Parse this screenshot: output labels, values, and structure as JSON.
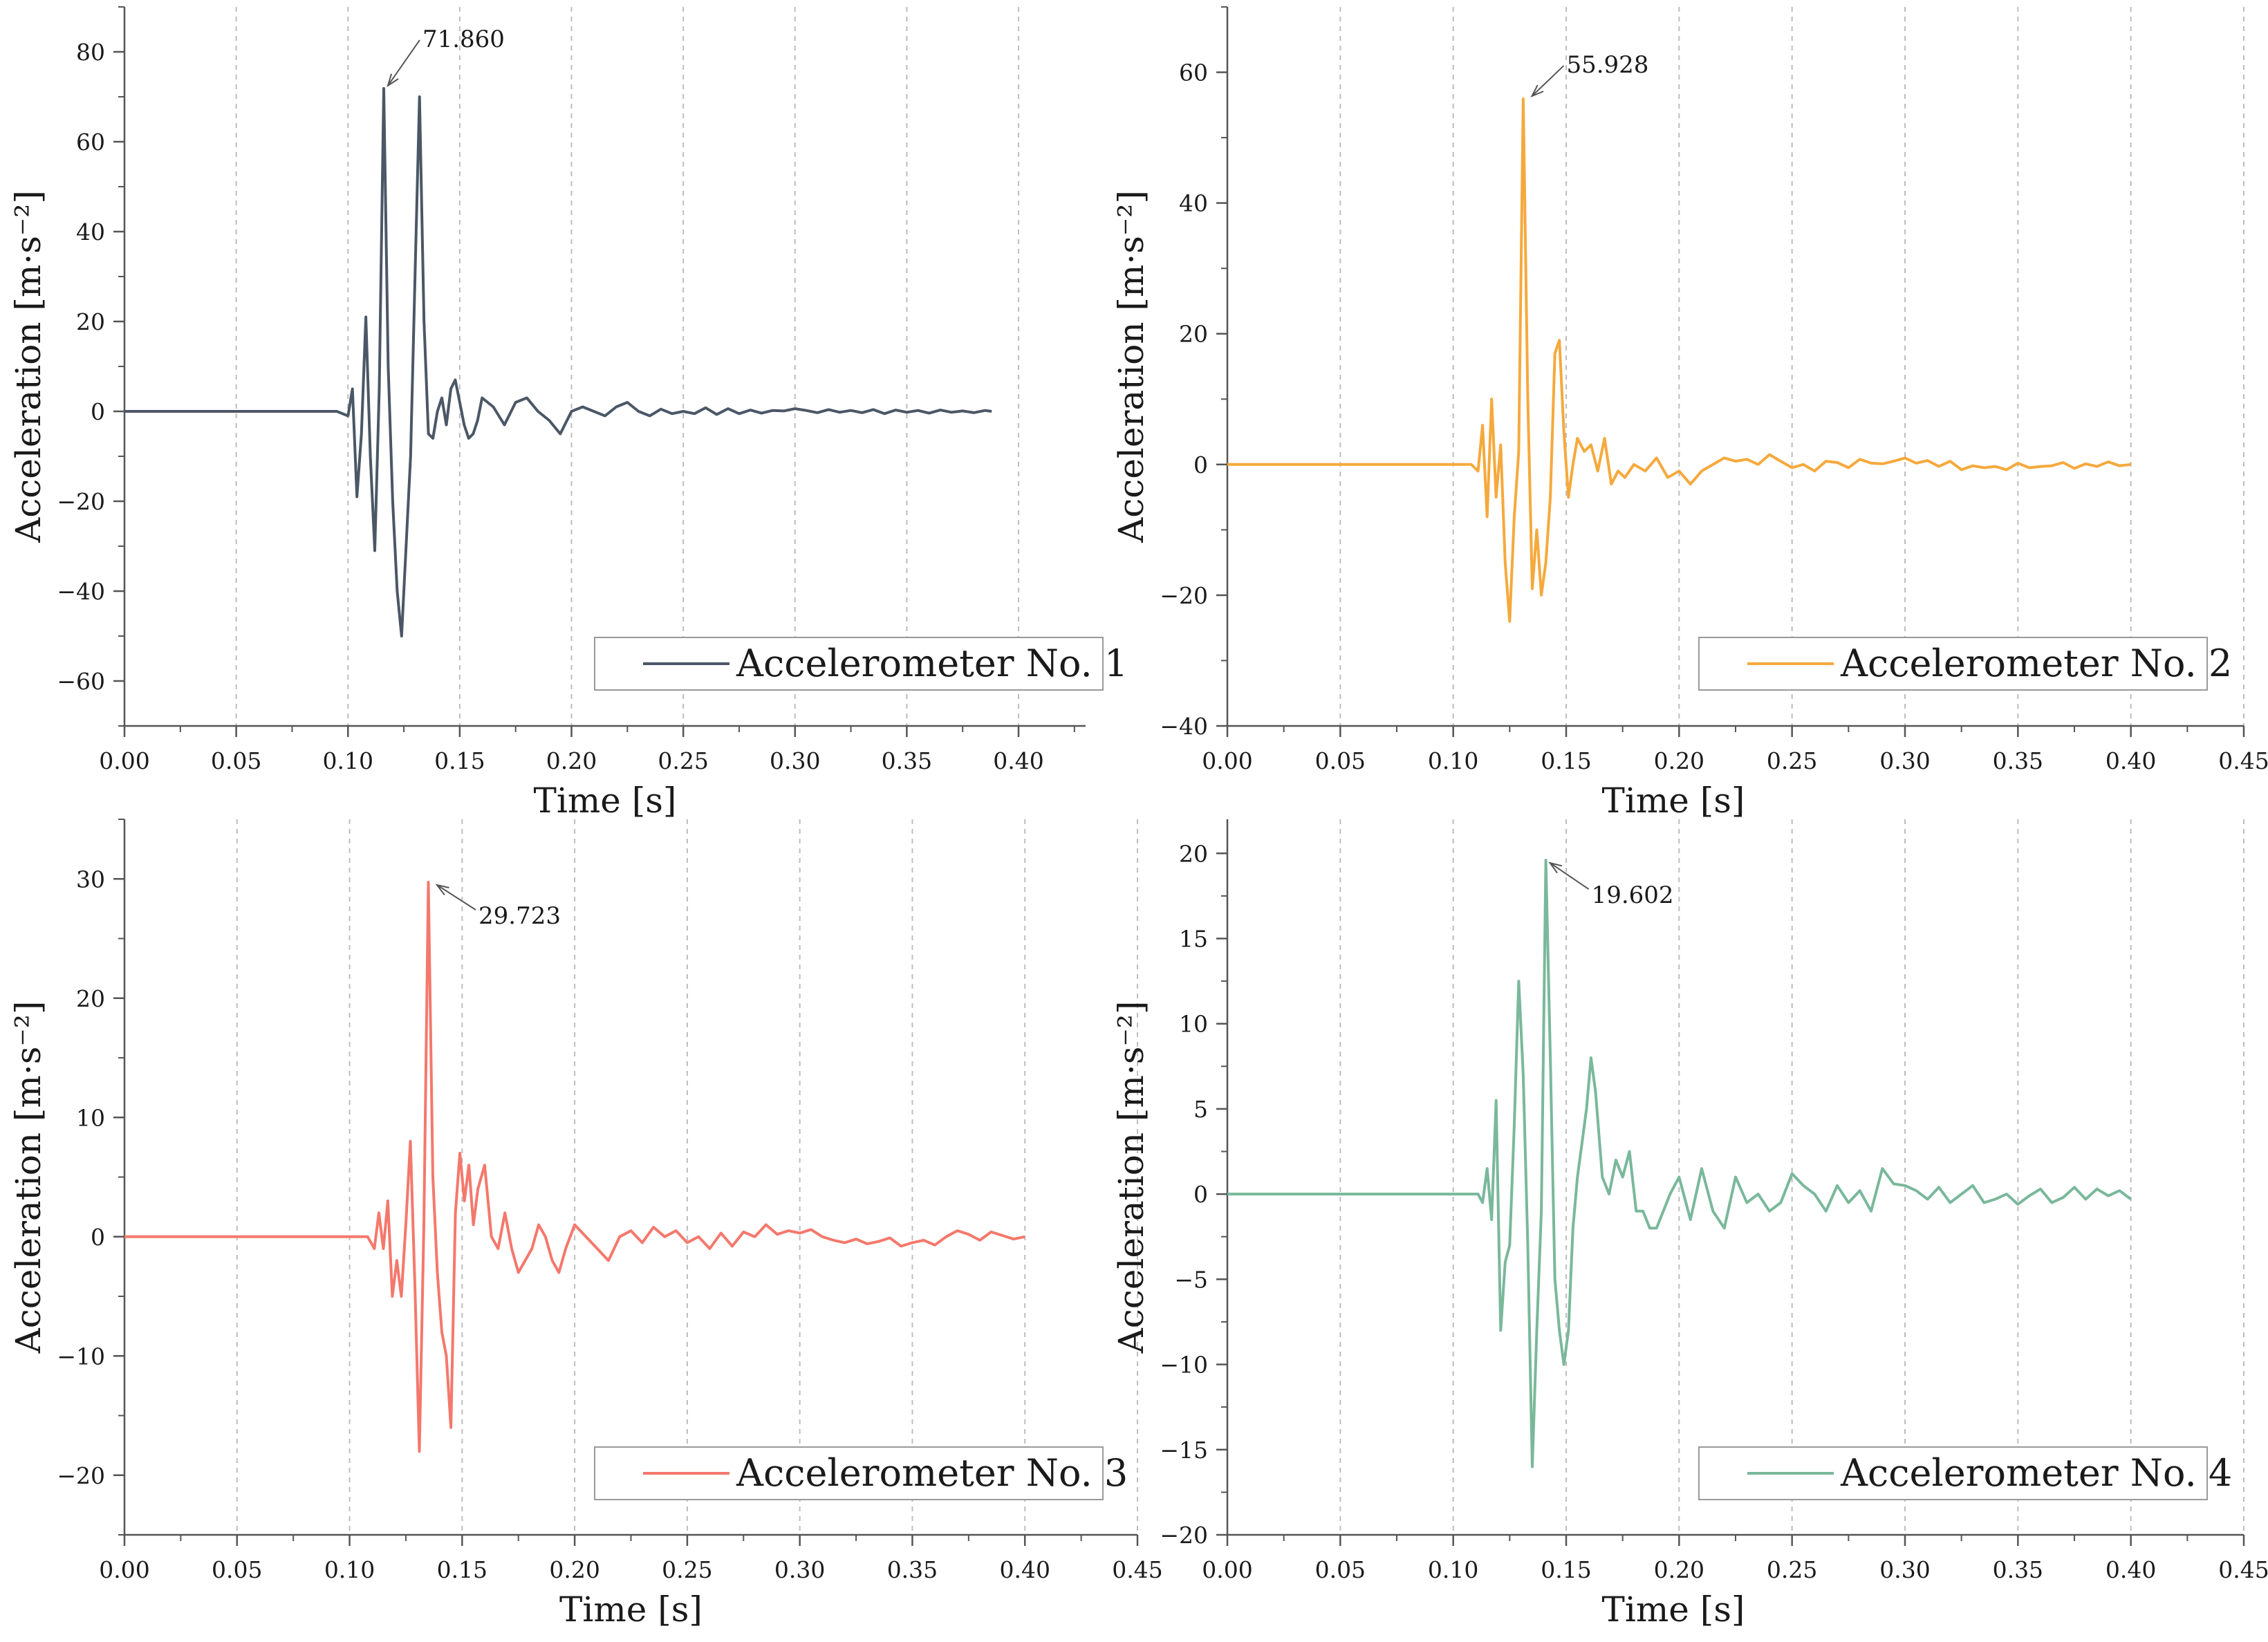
{
  "chart_data": [
    {
      "type": "line",
      "series_name": "Accelerometer No. 1",
      "color": "#4b5766",
      "xlabel": "Time [s]",
      "ylabel": "Acceleration [m·s⁻²]",
      "xlim": [
        0,
        0.43
      ],
      "ylim": [
        -70,
        90
      ],
      "xticks": [
        "0.00",
        "0.05",
        "0.10",
        "0.15",
        "0.20",
        "0.25",
        "0.30",
        "0.35",
        "0.40"
      ],
      "yticks": [
        "-60",
        "-40",
        "-20",
        "0",
        "20",
        "40",
        "60",
        "80"
      ],
      "yticks_values": [
        -60,
        -40,
        -20,
        0,
        20,
        40,
        60,
        80
      ],
      "legend": "Accelerometer No. 1",
      "legend_position": "bottom-right",
      "annotation": {
        "label": "71.860",
        "x": 0.116,
        "y": 71.86
      },
      "x": [
        0,
        0.095,
        0.1,
        0.102,
        0.104,
        0.106,
        0.108,
        0.11,
        0.112,
        0.114,
        0.116,
        0.118,
        0.12,
        0.122,
        0.124,
        0.126,
        0.128,
        0.13,
        0.132,
        0.134,
        0.136,
        0.138,
        0.14,
        0.142,
        0.144,
        0.146,
        0.148,
        0.15,
        0.152,
        0.154,
        0.156,
        0.158,
        0.16,
        0.165,
        0.17,
        0.175,
        0.18,
        0.185,
        0.19,
        0.195,
        0.2,
        0.205,
        0.21,
        0.215,
        0.22,
        0.225,
        0.23,
        0.235,
        0.24,
        0.245,
        0.25,
        0.255,
        0.26,
        0.265,
        0.27,
        0.275,
        0.28,
        0.285,
        0.29,
        0.295,
        0.3,
        0.305,
        0.31,
        0.315,
        0.32,
        0.325,
        0.33,
        0.335,
        0.34,
        0.345,
        0.35,
        0.355,
        0.36,
        0.365,
        0.37,
        0.375,
        0.38,
        0.385,
        0.388
      ],
      "y": [
        0,
        0,
        -1,
        5,
        -19,
        -5,
        21,
        -10,
        -31,
        5,
        71.86,
        10,
        -20,
        -40,
        -50,
        -30,
        -10,
        30,
        70,
        20,
        -5,
        -6,
        0,
        3,
        -3,
        5,
        7,
        2,
        -3,
        -6,
        -5,
        -2,
        3,
        1,
        -3,
        2,
        3,
        0,
        -2,
        -5,
        0,
        1,
        0,
        -1,
        1,
        2,
        0,
        -1,
        0.5,
        -0.5,
        0,
        -0.5,
        0.8,
        -0.7,
        0.6,
        -0.5,
        0.3,
        -0.4,
        0.2,
        0.1,
        0.6,
        0.2,
        -0.3,
        0.4,
        -0.2,
        0.2,
        -0.3,
        0.4,
        -0.5,
        0.3,
        -0.2,
        0.2,
        -0.4,
        0.3,
        -0.2,
        0.1,
        -0.3,
        0.2,
        0
      ]
    },
    {
      "type": "line",
      "series_name": "Accelerometer No. 2",
      "color": "#f5a93c",
      "xlabel": "Time [s]",
      "ylabel": "Acceleration [m·s⁻²]",
      "xlim": [
        0,
        0.45
      ],
      "ylim": [
        -40,
        70
      ],
      "xticks": [
        "0.00",
        "0.05",
        "0.10",
        "0.15",
        "0.20",
        "0.25",
        "0.30",
        "0.35",
        "0.40",
        "0.45"
      ],
      "yticks": [
        "-40",
        "-20",
        "0",
        "20",
        "40",
        "60"
      ],
      "yticks_values": [
        -40,
        -20,
        0,
        20,
        40,
        60
      ],
      "legend": "Accelerometer No. 2",
      "legend_position": "bottom-right",
      "annotation": {
        "label": "55.928",
        "x": 0.133,
        "y": 55.928
      },
      "x": [
        0,
        0.108,
        0.111,
        0.113,
        0.115,
        0.117,
        0.119,
        0.121,
        0.123,
        0.125,
        0.127,
        0.129,
        0.131,
        0.133,
        0.135,
        0.137,
        0.139,
        0.141,
        0.143,
        0.145,
        0.147,
        0.149,
        0.151,
        0.153,
        0.155,
        0.158,
        0.161,
        0.164,
        0.167,
        0.17,
        0.173,
        0.176,
        0.18,
        0.185,
        0.19,
        0.195,
        0.2,
        0.205,
        0.21,
        0.215,
        0.22,
        0.225,
        0.23,
        0.235,
        0.24,
        0.245,
        0.25,
        0.255,
        0.26,
        0.265,
        0.27,
        0.275,
        0.28,
        0.285,
        0.29,
        0.295,
        0.3,
        0.305,
        0.31,
        0.315,
        0.32,
        0.325,
        0.33,
        0.335,
        0.34,
        0.345,
        0.35,
        0.355,
        0.36,
        0.365,
        0.37,
        0.375,
        0.38,
        0.385,
        0.39,
        0.395,
        0.4
      ],
      "y": [
        0,
        0,
        -1,
        6,
        -8,
        10,
        -5,
        3,
        -15,
        -24,
        -8,
        2,
        55.928,
        10,
        -19,
        -10,
        -20,
        -15,
        -5,
        17,
        19,
        5,
        -5,
        0,
        4,
        2,
        3,
        -1,
        4,
        -3,
        -1,
        -2,
        0,
        -1,
        1,
        -2,
        -1,
        -3,
        -1,
        0,
        1,
        0.5,
        0.8,
        0,
        1.5,
        0.5,
        -0.5,
        0,
        -1,
        0.5,
        0.3,
        -0.5,
        0.8,
        0.2,
        0.1,
        0.5,
        1,
        0.2,
        0.6,
        -0.3,
        0.5,
        -0.8,
        -0.2,
        -0.5,
        -0.3,
        -0.8,
        0.2,
        -0.5,
        -0.3,
        -0.2,
        0.3,
        -0.6,
        0.1,
        -0.3,
        0.4,
        -0.2,
        0
      ]
    },
    {
      "type": "line",
      "series_name": "Accelerometer No. 3",
      "color": "#f4786c",
      "xlabel": "Time [s]",
      "ylabel": "Acceleration [m·s⁻²]",
      "xlim": [
        0,
        0.45
      ],
      "ylim": [
        -25,
        35
      ],
      "xticks": [
        "0.00",
        "0.05",
        "0.10",
        "0.15",
        "0.20",
        "0.25",
        "0.30",
        "0.35",
        "0.40",
        "0.45"
      ],
      "yticks": [
        "-20",
        "-10",
        "0",
        "10",
        "20",
        "30"
      ],
      "yticks_values": [
        -20,
        -10,
        0,
        10,
        20,
        30
      ],
      "legend": "Accelerometer No. 3",
      "legend_position": "bottom-right",
      "annotation": {
        "label": "29.723",
        "x": 0.137,
        "y": 29.723
      },
      "x": [
        0,
        0.108,
        0.111,
        0.113,
        0.115,
        0.117,
        0.119,
        0.121,
        0.123,
        0.125,
        0.127,
        0.129,
        0.131,
        0.133,
        0.135,
        0.137,
        0.139,
        0.141,
        0.143,
        0.145,
        0.147,
        0.149,
        0.151,
        0.153,
        0.155,
        0.157,
        0.16,
        0.163,
        0.166,
        0.169,
        0.172,
        0.175,
        0.178,
        0.181,
        0.184,
        0.187,
        0.19,
        0.193,
        0.196,
        0.2,
        0.205,
        0.21,
        0.215,
        0.22,
        0.225,
        0.23,
        0.235,
        0.24,
        0.245,
        0.25,
        0.255,
        0.26,
        0.265,
        0.27,
        0.275,
        0.28,
        0.285,
        0.29,
        0.295,
        0.3,
        0.305,
        0.31,
        0.315,
        0.32,
        0.325,
        0.33,
        0.335,
        0.34,
        0.345,
        0.35,
        0.355,
        0.36,
        0.365,
        0.37,
        0.375,
        0.38,
        0.385,
        0.39,
        0.395,
        0.4
      ],
      "y": [
        0,
        0,
        -1,
        2,
        -1,
        3,
        -5,
        -2,
        -5,
        1,
        8,
        -4,
        -18,
        1,
        29.723,
        5,
        -3,
        -8,
        -10,
        -16,
        2,
        7,
        3,
        6,
        1,
        4,
        6,
        0,
        -1,
        2,
        -1,
        -3,
        -2,
        -1,
        1,
        0,
        -2,
        -3,
        -1,
        1,
        0,
        -1,
        -2,
        0,
        0.5,
        -0.5,
        0.8,
        0,
        0.5,
        -0.5,
        0,
        -1,
        0.3,
        -0.8,
        0.4,
        0,
        1,
        0.2,
        0.5,
        0.3,
        0.6,
        0,
        -0.3,
        -0.5,
        -0.2,
        -0.6,
        -0.4,
        -0.1,
        -0.8,
        -0.5,
        -0.3,
        -0.7,
        0,
        0.5,
        0.2,
        -0.3,
        0.4,
        0.1,
        -0.2,
        0
      ]
    },
    {
      "type": "line",
      "series_name": "Accelerometer No. 4",
      "color": "#7ab89b",
      "xlabel": "Time [s]",
      "ylabel": "Acceleration [m·s⁻²]",
      "xlim": [
        0,
        0.45
      ],
      "ylim": [
        -20,
        22
      ],
      "xticks": [
        "0.00",
        "0.05",
        "0.10",
        "0.15",
        "0.20",
        "0.25",
        "0.30",
        "0.35",
        "0.40",
        "0.45"
      ],
      "yticks": [
        "-20",
        "-15",
        "-10",
        "-5",
        "0",
        "5",
        "10",
        "15",
        "20"
      ],
      "yticks_values": [
        -20,
        -15,
        -10,
        -5,
        0,
        5,
        10,
        15,
        20
      ],
      "legend": "Accelerometer No. 4",
      "legend_position": "bottom-right",
      "annotation": {
        "label": "19.602",
        "x": 0.141,
        "y": 19.602
      },
      "x": [
        0,
        0.108,
        0.111,
        0.113,
        0.115,
        0.117,
        0.119,
        0.121,
        0.123,
        0.125,
        0.127,
        0.129,
        0.131,
        0.133,
        0.135,
        0.137,
        0.139,
        0.141,
        0.143,
        0.145,
        0.147,
        0.149,
        0.151,
        0.153,
        0.155,
        0.157,
        0.159,
        0.161,
        0.163,
        0.166,
        0.169,
        0.172,
        0.175,
        0.178,
        0.181,
        0.184,
        0.187,
        0.19,
        0.193,
        0.196,
        0.2,
        0.205,
        0.21,
        0.215,
        0.22,
        0.225,
        0.23,
        0.235,
        0.24,
        0.245,
        0.25,
        0.255,
        0.26,
        0.265,
        0.27,
        0.275,
        0.28,
        0.285,
        0.29,
        0.295,
        0.3,
        0.305,
        0.31,
        0.315,
        0.32,
        0.325,
        0.33,
        0.335,
        0.34,
        0.345,
        0.35,
        0.355,
        0.36,
        0.365,
        0.37,
        0.375,
        0.38,
        0.385,
        0.39,
        0.395,
        0.4
      ],
      "y": [
        0,
        0,
        0,
        -0.5,
        1.5,
        -1.5,
        5.5,
        -8,
        -4,
        -3,
        4,
        12.5,
        7,
        -3,
        -16,
        -8,
        -1,
        19.602,
        8,
        -5,
        -8,
        -10,
        -8,
        -2,
        1,
        3,
        5,
        8,
        6,
        1,
        0,
        2,
        1,
        2.5,
        -1,
        -1,
        -2,
        -2,
        -1,
        0,
        1,
        -1.5,
        1.5,
        -1,
        -2,
        1,
        -0.5,
        0,
        -1,
        -0.5,
        1.2,
        0.5,
        0,
        -1,
        0.5,
        -0.5,
        0.2,
        -1,
        1.5,
        0.6,
        0.5,
        0.2,
        -0.3,
        0.4,
        -0.5,
        0,
        0.5,
        -0.5,
        -0.3,
        0,
        -0.6,
        -0.1,
        0.3,
        -0.5,
        -0.2,
        0.4,
        -0.3,
        0.3,
        -0.1,
        0.2,
        -0.3
      ]
    }
  ]
}
